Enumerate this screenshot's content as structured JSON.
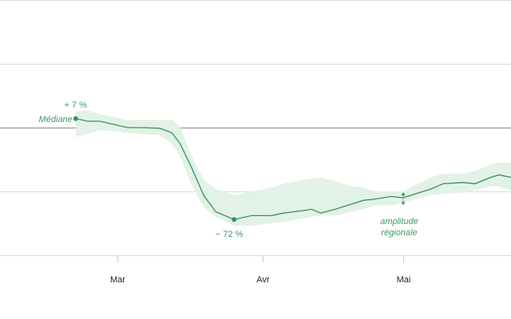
{
  "chart_data": {
    "type": "line",
    "title": "",
    "xlabel": "",
    "ylabel": "",
    "x_unit": "days since 1 March",
    "xlim": [
      -25,
      84
    ],
    "ylim": [
      -100,
      100
    ],
    "yticks": [
      100,
      50,
      0,
      -50,
      -100
    ],
    "grid": true,
    "xticks": [
      {
        "x": 0,
        "label": "Mar"
      },
      {
        "x": 31,
        "label": "Avr"
      },
      {
        "x": 61,
        "label": "Mai"
      }
    ],
    "colors": {
      "line": "#3a8f5f",
      "band": "#e2f2e7",
      "grid": "#dddddd",
      "baseline": "#999999",
      "annotation": "#3f9a67"
    },
    "series": [
      {
        "name": "Médiane",
        "x": [
          -8.9,
          -6.3,
          -3.7,
          2.2,
          4.8,
          9,
          11.6,
          13.3,
          15.8,
          18.4,
          21,
          24.9,
          28.6,
          32.9,
          35.4,
          39.7,
          41.4,
          43.4,
          46.5,
          49.9,
          52.5,
          55,
          58.4,
          61,
          63.5,
          67,
          69.5,
          73.8,
          76.3,
          79.7,
          81.4,
          84
        ],
        "values": [
          7,
          5,
          5,
          0,
          0,
          -0.5,
          -4,
          -12,
          -31,
          -53,
          -66,
          -72,
          -69,
          -69,
          -67,
          -65,
          -64,
          -67,
          -64,
          -60,
          -57,
          -56,
          -54,
          -55,
          -52,
          -48,
          -44,
          -43,
          -44,
          -39,
          -37,
          -39
        ],
        "upper": [
          12.5,
          13.75,
          10.6,
          6,
          6,
          6,
          6,
          1,
          -22,
          -41,
          -48,
          -53,
          -50,
          -47,
          -44,
          -41,
          -40,
          -39,
          -42,
          -46,
          -47,
          -50,
          -50,
          -50,
          -45,
          -39,
          -36,
          -36,
          -34,
          -29,
          -27.5,
          -27.5
        ],
        "lower": [
          -7.5,
          -5,
          -2,
          -4,
          -5,
          -6,
          -12.5,
          -22,
          -44,
          -62.5,
          -70,
          -77,
          -77,
          -75,
          -74,
          -71,
          -70,
          -69,
          -69,
          -66,
          -64,
          -61,
          -61,
          -59,
          -56,
          -53,
          -52,
          -51,
          -49,
          -46,
          -46,
          -49
        ]
      }
    ],
    "annotations": {
      "start_value": "+ 7 %",
      "start_label": "Médiane",
      "min_value": "− 72 %",
      "band_label_1": "amplitude",
      "band_label_2": "régionale"
    }
  }
}
